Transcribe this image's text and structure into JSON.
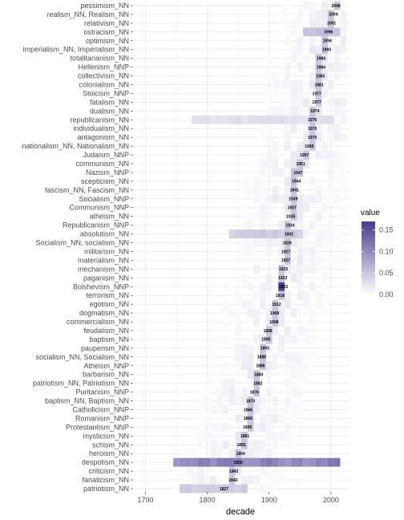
{
  "chart_data": {
    "type": "heatmap",
    "xlabel": "decade",
    "x_ticks": [
      1700,
      1800,
      1900,
      2000
    ],
    "xlim": [
      1680,
      2030
    ],
    "decades_shown": [
      1680,
      2020
    ],
    "legend": {
      "title": "value",
      "ticks": [
        0.0,
        0.05,
        0.1,
        0.15
      ],
      "tick_labels": [
        "0.00",
        "0.05",
        "0.10",
        "0.15"
      ],
      "max": 0.17,
      "placement": "right"
    },
    "colors": {
      "low": "#ffffff",
      "high": "#463b8f",
      "grid": "#ebebeb",
      "panel_bg": "#ffffff"
    },
    "rows": [
      {
        "label": "pessimism_NN",
        "peak_year": 2008,
        "peak_label": "2008"
      },
      {
        "label": "realism_NN, Realism_NN",
        "peak_year": 2004,
        "peak_label": "2004"
      },
      {
        "label": "relativism_NN",
        "peak_year": 2001,
        "peak_label": "2001"
      },
      {
        "label": "ostracism_NN",
        "peak_year": 1996,
        "peak_label": "1996"
      },
      {
        "label": "optimism_NN",
        "peak_year": 1994,
        "peak_label": "1994"
      },
      {
        "label": "imperialism_NN, Imperialism_NN",
        "peak_year": 1993,
        "peak_label": "1993"
      },
      {
        "label": "totalitarianism_NN",
        "peak_year": 1984,
        "peak_label": "1984"
      },
      {
        "label": "Hellenism_NNP",
        "peak_year": 1984,
        "peak_label": "1984"
      },
      {
        "label": "collectivism_NN",
        "peak_year": 1983,
        "peak_label": "1983"
      },
      {
        "label": "colonialism_NN",
        "peak_year": 1981,
        "peak_label": "1981"
      },
      {
        "label": "Stoicism_NNP",
        "peak_year": 1977,
        "peak_label": "1977"
      },
      {
        "label": "fatalism_NN",
        "peak_year": 1977,
        "peak_label": "1977"
      },
      {
        "label": "dualism_NN",
        "peak_year": 1974,
        "peak_label": "1974"
      },
      {
        "label": "republicanism_NN",
        "peak_year": 1970,
        "peak_label": "1970"
      },
      {
        "label": "individualism_NN",
        "peak_year": 1970,
        "peak_label": "1970"
      },
      {
        "label": "antagonism_NN",
        "peak_year": 1970,
        "peak_label": "1970"
      },
      {
        "label": "nationalism_NN, Nationalism_NN",
        "peak_year": 1965,
        "peak_label": "1965"
      },
      {
        "label": "Judaism_NNP",
        "peak_year": 1957,
        "peak_label": "1957"
      },
      {
        "label": "communism_NN",
        "peak_year": 1951,
        "peak_label": "1951"
      },
      {
        "label": "Nazism_NNP",
        "peak_year": 1947,
        "peak_label": "1947"
      },
      {
        "label": "scepticism_NN",
        "peak_year": 1944,
        "peak_label": "1944"
      },
      {
        "label": "fascism_NN, Fascism_NN",
        "peak_year": 1941,
        "peak_label": "1941"
      },
      {
        "label": "Socialism_NNP",
        "peak_year": 1939,
        "peak_label": "1939"
      },
      {
        "label": "Communism_NNP",
        "peak_year": 1937,
        "peak_label": "1937"
      },
      {
        "label": "atheism_NN",
        "peak_year": 1935,
        "peak_label": "1935"
      },
      {
        "label": "Republicanism_NNP",
        "peak_year": 1934,
        "peak_label": "1934"
      },
      {
        "label": "absolutism_NN",
        "peak_year": 1932,
        "peak_label": "1932"
      },
      {
        "label": "Socialism_NN, socialism_NN",
        "peak_year": 1929,
        "peak_label": "1929"
      },
      {
        "label": "militarism_NN",
        "peak_year": 1927,
        "peak_label": "1927"
      },
      {
        "label": "materialism_NN",
        "peak_year": 1927,
        "peak_label": "1927"
      },
      {
        "label": "mechanism_NN",
        "peak_year": 1923,
        "peak_label": "1923"
      },
      {
        "label": "paganism_NN",
        "peak_year": 1922,
        "peak_label": "1922"
      },
      {
        "label": "Bolshevism_NNP",
        "peak_year": 1923,
        "peak_label": "1923"
      },
      {
        "label": "terrorism_NN",
        "peak_year": 1918,
        "peak_label": "1918"
      },
      {
        "label": "egotism_NN",
        "peak_year": 1912,
        "peak_label": "1912"
      },
      {
        "label": "dogmatism_NN",
        "peak_year": 1909,
        "peak_label": "1909"
      },
      {
        "label": "commercialism_NN",
        "peak_year": 1908,
        "peak_label": "1908"
      },
      {
        "label": "feudalism_NN",
        "peak_year": 1898,
        "peak_label": "1898"
      },
      {
        "label": "baptism_NN",
        "peak_year": 1895,
        "peak_label": "1895"
      },
      {
        "label": "pauperism_NN",
        "peak_year": 1893,
        "peak_label": "1893"
      },
      {
        "label": "socialism_NN, Socialism_NN",
        "peak_year": 1888,
        "peak_label": "1888"
      },
      {
        "label": "Atheism_NNP",
        "peak_year": 1886,
        "peak_label": "1886"
      },
      {
        "label": "barbarism_NN",
        "peak_year": 1883,
        "peak_label": "1883"
      },
      {
        "label": "patriotism_NN, Patriotism_NN",
        "peak_year": 1882,
        "peak_label": "1882"
      },
      {
        "label": "Puritanism_NNP",
        "peak_year": 1876,
        "peak_label": "1876"
      },
      {
        "label": "baptism_NN, Baptism_NN",
        "peak_year": 1870,
        "peak_label": "1870"
      },
      {
        "label": "Catholicism_NNP",
        "peak_year": 1866,
        "peak_label": "1866"
      },
      {
        "label": "Romanism_NNP",
        "peak_year": 1866,
        "peak_label": "1866"
      },
      {
        "label": "Protestantism_NNP",
        "peak_year": 1865,
        "peak_label": "1865"
      },
      {
        "label": "mysticism_NN",
        "peak_year": 1861,
        "peak_label": "1861"
      },
      {
        "label": "schism_NN",
        "peak_year": 1855,
        "peak_label": "1855"
      },
      {
        "label": "heroism_NN",
        "peak_year": 1854,
        "peak_label": "1854"
      },
      {
        "label": "despotism_NN",
        "peak_year": 1850,
        "peak_label": "1850"
      },
      {
        "label": "criticism_NN",
        "peak_year": 1843,
        "peak_label": "1843"
      },
      {
        "label": "fanaticism_NN",
        "peak_year": 1842,
        "peak_label": "1842"
      },
      {
        "label": "patriotism_NN",
        "peak_year": 1827,
        "peak_label": "1827"
      }
    ],
    "highlight_cells": [
      {
        "row": "despotism_NN",
        "from": 1750,
        "to": 2010,
        "value": 0.12
      },
      {
        "row": "Bolshevism_NNP",
        "from": 1920,
        "to": 1920,
        "value": 0.17
      },
      {
        "row": "absolutism_NN",
        "from": 1840,
        "to": 1950,
        "value": 0.05
      },
      {
        "row": "patriotism_NN",
        "from": 1760,
        "to": 1860,
        "value": 0.05
      },
      {
        "row": "republicanism_NN",
        "from": 1780,
        "to": 2000,
        "value": 0.03
      },
      {
        "row": "ostracism_NN",
        "from": 1960,
        "to": 2010,
        "value": 0.06
      },
      {
        "row": "Nazism_NNP",
        "from": 1940,
        "to": 1940,
        "value": 0.06
      }
    ]
  }
}
